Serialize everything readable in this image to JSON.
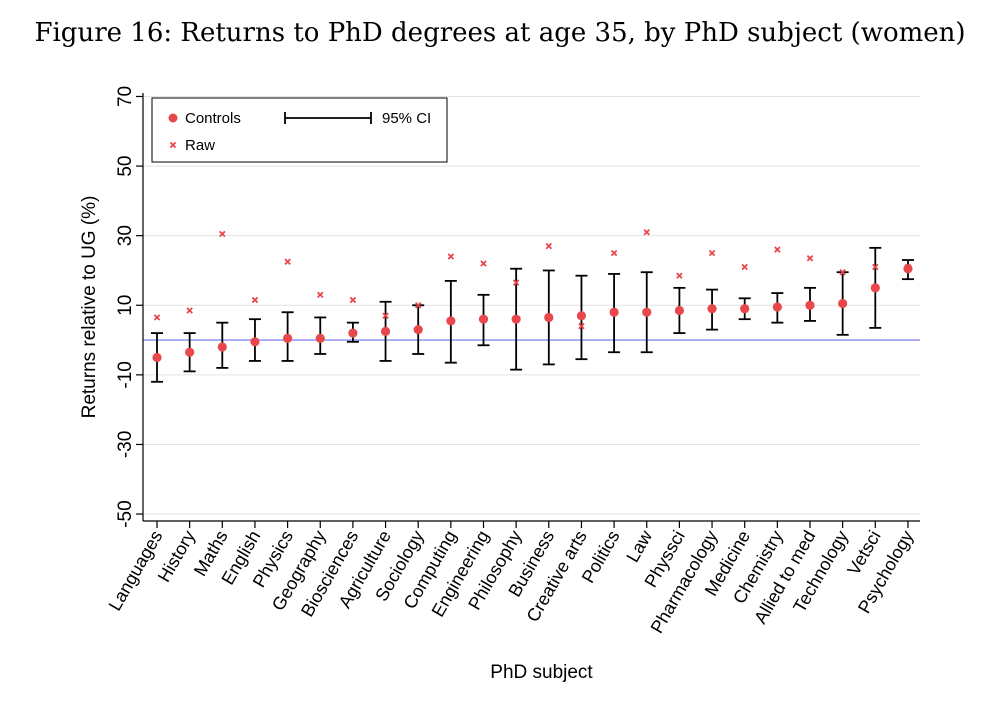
{
  "figure_title": "Figure 16: Returns to PhD degrees at age 35, by PhD subject (women)",
  "colors": {
    "controls": "#e8474c",
    "raw": "#e8474c",
    "ci": "#000000",
    "zero_line": "#9b9bf0"
  },
  "chart_data": {
    "type": "scatter",
    "xlabel": "PhD subject",
    "ylabel": "Returns relative to UG (%)",
    "ylim": [
      -52,
      71
    ],
    "yticks": [
      -50,
      -30,
      -10,
      10,
      30,
      50,
      70
    ],
    "ytick_labels": [
      "-50",
      "-30",
      "-10",
      "10",
      "30",
      "50",
      "70"
    ],
    "reference_line": 0,
    "legend": {
      "placement": "top-left",
      "entries": [
        "Controls",
        "Raw",
        "95% CI"
      ]
    },
    "categories": [
      "Languages",
      "History",
      "Maths",
      "English",
      "Physics",
      "Geography",
      "Biosciences",
      "Agriculture",
      "Sociology",
      "Computing",
      "Engineering",
      "Philosophy",
      "Business",
      "Creative arts",
      "Politics",
      "Law",
      "Physsci",
      "Pharmacology",
      "Medicine",
      "Chemistry",
      "Allied to med",
      "Technology",
      "Vetsci",
      "Psychology"
    ],
    "series": [
      {
        "name": "Controls",
        "values": [
          -5,
          -3.5,
          -2,
          -0.5,
          0.5,
          0.5,
          2,
          2.5,
          3,
          5.5,
          6,
          6,
          6.5,
          7,
          8,
          8,
          8.5,
          9,
          9,
          9.5,
          10,
          10.5,
          15,
          20.5
        ]
      },
      {
        "name": "Raw",
        "values": [
          6.5,
          8.5,
          30.5,
          11.5,
          22.5,
          13,
          11.5,
          7,
          10,
          24,
          22,
          16.5,
          27,
          4,
          25,
          31,
          18.5,
          25,
          21,
          26,
          23.5,
          19.5,
          21,
          21
        ]
      },
      {
        "name": "95% CI",
        "lower": [
          -12,
          -9,
          -8,
          -6,
          -6,
          -4,
          -0.5,
          -6,
          -4,
          -6.5,
          -1.5,
          -8.5,
          -7,
          -5.5,
          -3.5,
          -3.5,
          2,
          3,
          6,
          5,
          5.5,
          1.5,
          3.5,
          17.5
        ],
        "upper": [
          2,
          2,
          5,
          6,
          8,
          6.5,
          5,
          11,
          10,
          17,
          13,
          20.5,
          20,
          18.5,
          19,
          19.5,
          15,
          14.5,
          12,
          13.5,
          15,
          19.5,
          26.5,
          23
        ]
      }
    ]
  }
}
